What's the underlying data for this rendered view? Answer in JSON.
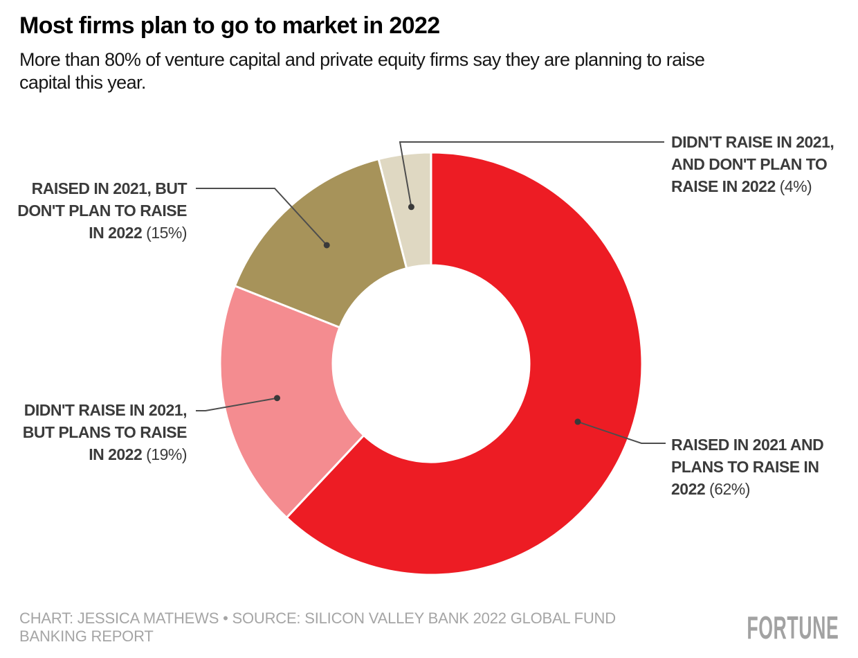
{
  "header": {
    "title": "Most firms plan to go to market in 2022",
    "subtitle": "More than 80% of venture capital and private equity firms say they are planning to raise\ncapital this year."
  },
  "chart_data": {
    "type": "pie",
    "donut": true,
    "title": "Most firms plan to go to market in 2022",
    "start_angle": "12 o'clock",
    "direction": "clockwise",
    "legend_position": "callout labels with leader lines",
    "slices": [
      {
        "label": "Raised in 2021 and plans to raise in 2022",
        "value_pct": 62,
        "color": "#ed1c24",
        "callout_lines": [
          "RAISED IN 2021 AND",
          "PLANS TO RAISE IN",
          "2022"
        ],
        "pct_label": "(62%)",
        "callout_side": "right"
      },
      {
        "label": "Didn't raise in 2021, but plans to raise in 2022",
        "value_pct": 19,
        "color": "#f48c90",
        "callout_lines": [
          "DIDN'T RAISE IN 2021,",
          "BUT PLANS TO RAISE",
          "IN 2022"
        ],
        "pct_label": "(19%)",
        "callout_side": "left"
      },
      {
        "label": "Raised in 2021, but don't plan to raise in 2022",
        "value_pct": 15,
        "color": "#a7935a",
        "callout_lines": [
          "RAISED IN 2021, BUT",
          "DON'T PLAN TO RAISE",
          "IN 2022"
        ],
        "pct_label": "(15%)",
        "callout_side": "left"
      },
      {
        "label": "Didn't raise in 2021, and don't plan to raise in 2022",
        "value_pct": 4,
        "color": "#dfd8c2",
        "callout_lines": [
          "DIDN'T RAISE IN 2021,",
          "AND DON'T PLAN TO",
          "RAISE IN 2022"
        ],
        "pct_label": "(4%)",
        "callout_side": "right"
      }
    ],
    "style": {
      "leader_line_color": "#4d4d4d",
      "dot_color": "#3a3a3a",
      "label_color": "#3b3b3b",
      "segment_gap_color": "#ffffff"
    }
  },
  "footer": {
    "credit": "CHART: JESSICA MATHEWS • SOURCE: SILICON VALLEY BANK 2022 GLOBAL FUND BANKING REPORT",
    "logo": "FORTUNE"
  }
}
